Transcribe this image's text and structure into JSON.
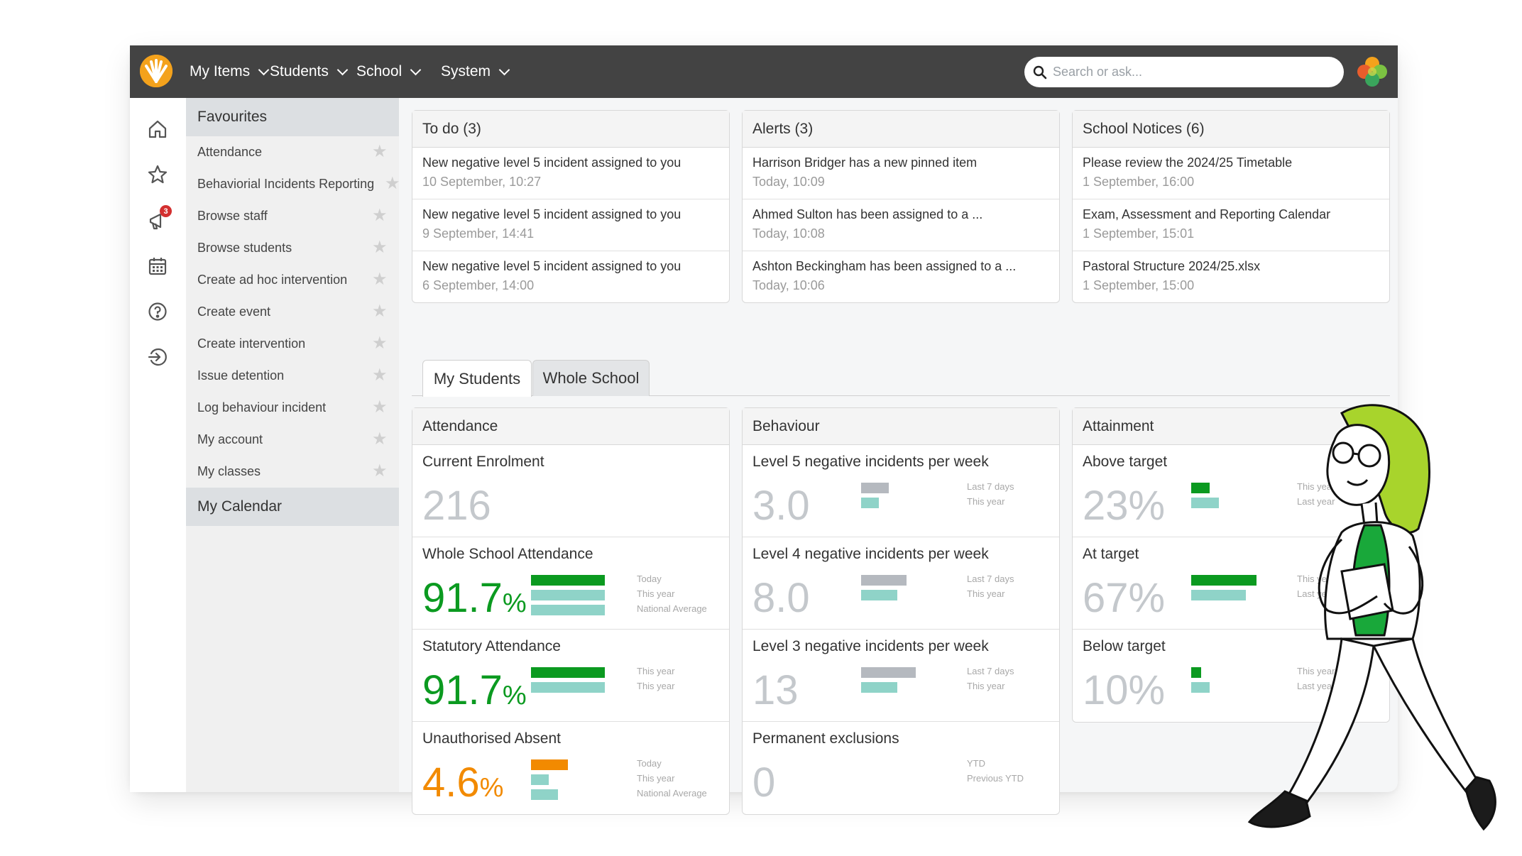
{
  "nav": {
    "menus": [
      "My Items",
      "Students",
      "School",
      "System"
    ],
    "search_placeholder": "Search or ask..."
  },
  "rail": {
    "icons": [
      "home-icon",
      "star-icon",
      "megaphone-icon",
      "calendar-icon",
      "help-icon",
      "sign-out-icon"
    ],
    "notification_count": "3"
  },
  "sidebar": {
    "favourites_title": "Favourites",
    "favourites": [
      "Attendance",
      "Behaviorial Incidents Reporting",
      "Browse staff",
      "Browse students",
      "Create ad hoc intervention",
      "Create event",
      "Create intervention",
      "Issue detention",
      "Log behaviour incident",
      "My account",
      "My classes"
    ],
    "calendar_title": "My Calendar"
  },
  "todo": {
    "title": "To do",
    "count": "(3)",
    "items": [
      {
        "text": "New negative level 5 incident assigned to you",
        "date": "10 September, 10:27"
      },
      {
        "text": "New negative level 5 incident assigned to you",
        "date": "9 September, 14:41"
      },
      {
        "text": "New negative level 5 incident assigned to you",
        "date": "6 September, 14:00"
      }
    ]
  },
  "alerts": {
    "title": "Alerts",
    "count": "(3)",
    "items": [
      {
        "text": "Harrison Bridger has a new pinned item",
        "date": "Today, 10:09"
      },
      {
        "text": "Ahmed Sulton has been assigned to a ...",
        "date": "Today, 10:08"
      },
      {
        "text": "Ashton Beckingham has been assigned to a ...",
        "date": "Today, 10:06"
      }
    ]
  },
  "notices": {
    "title": "School Notices",
    "count": "(6)",
    "items": [
      {
        "text": "Please review the 2024/25 Timetable",
        "date": "1 September, 16:00"
      },
      {
        "text": "Exam, Assessment and Reporting Calendar",
        "date": "1 September, 15:01"
      },
      {
        "text": "Pastoral Structure 2024/25.xlsx",
        "date": "1 September, 15:00"
      }
    ]
  },
  "tabs": {
    "my_students": "My Students",
    "whole_school": "Whole School",
    "active": "My Students"
  },
  "attendance": {
    "title": "Attendance",
    "enrolment_label": "Current Enrolment",
    "enrolment_value": "216",
    "whole_label": "Whole School Attendance",
    "whole_value": "91.7",
    "whole_unit": "%",
    "whole_legend": [
      "Today",
      "This year",
      "National Average"
    ],
    "whole_bars": [
      0.9,
      0.9,
      0.9
    ],
    "statutory_label": "Statutory Attendance",
    "statutory_value": "91.7",
    "statutory_unit": "%",
    "statutory_legend": [
      "This year",
      "This year"
    ],
    "statutory_bars": [
      0.9,
      0.9
    ],
    "unauth_label": "Unauthorised Absent",
    "unauth_value": "4.6",
    "unauth_unit": "%",
    "unauth_legend": [
      "Today",
      "This year",
      "National Average"
    ],
    "unauth_bars": [
      0.45,
      0.22,
      0.33
    ]
  },
  "behaviour": {
    "title": "Behaviour",
    "l5_label": "Level 5 negative incidents per week",
    "l5_value": "3.0",
    "l5_legend": [
      "Last 7 days",
      "This year"
    ],
    "l5_bars": [
      0.34,
      0.22
    ],
    "l4_label": "Level 4 negative incidents per week",
    "l4_value": "8.0",
    "l4_legend": [
      "Last 7 days",
      "This year"
    ],
    "l4_bars": [
      0.56,
      0.44
    ],
    "l3_label": "Level 3 negative incidents per week",
    "l3_value": "13",
    "l3_legend": [
      "Last 7 days",
      "This year"
    ],
    "l3_bars": [
      0.67,
      0.44
    ],
    "perm_label": "Permanent exclusions",
    "perm_value": "0",
    "perm_legend": [
      "YTD",
      "Previous YTD"
    ]
  },
  "attainment": {
    "title": "Attainment",
    "above_label": "Above target",
    "above_value": "23%",
    "above_legend": [
      "This year",
      "Last year"
    ],
    "above_bars": [
      0.23,
      0.34
    ],
    "at_label": "At target",
    "at_value": "67%",
    "at_legend": [
      "This year",
      "Last year"
    ],
    "at_bars": [
      0.8,
      0.67
    ],
    "below_label": "Below target",
    "below_value": "10%",
    "below_legend": [
      "This year",
      "Last year"
    ],
    "below_bars": [
      0.12,
      0.23
    ]
  },
  "colors": {
    "topbar": "#434343",
    "green": "#0b9a20",
    "teal": "#8fd3c8",
    "grey": "#b5b9bf",
    "orange": "#f28a00",
    "logo": "#f4a21c",
    "muted": "#c4c8cc"
  }
}
